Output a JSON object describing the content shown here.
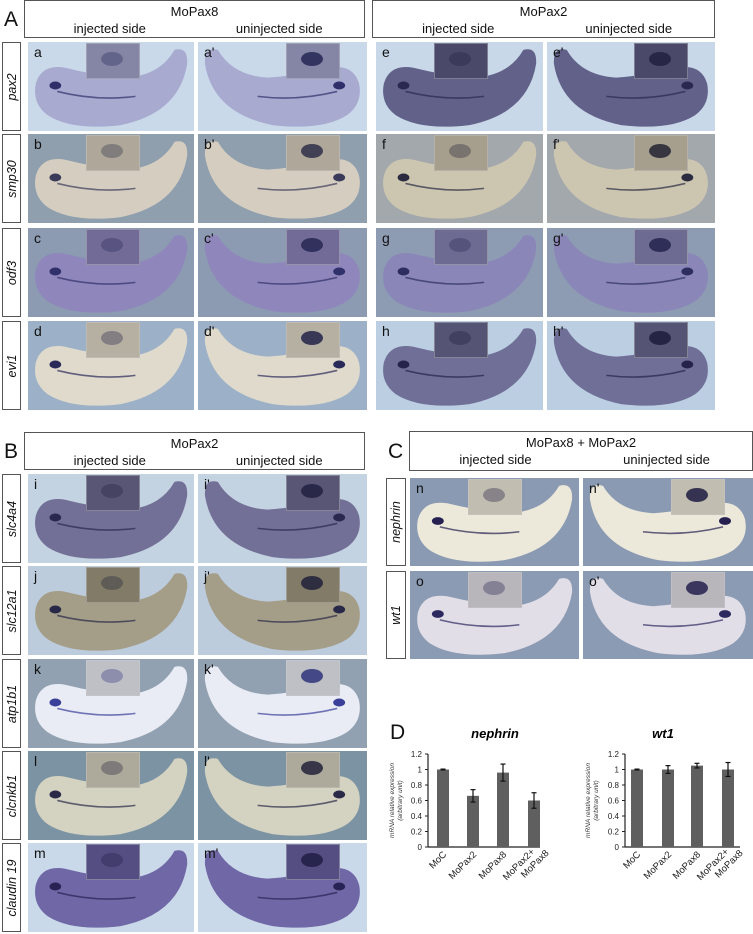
{
  "panels": [
    {
      "letter": "A",
      "row_labels": [
        "pax2",
        "smp30",
        "odf3",
        "evi1"
      ],
      "groups": [
        {
          "title": "MoPax8",
          "left_label": "injected side",
          "right_label": "uninjected side",
          "rows": [
            {
              "left_id": "a",
              "right_id": "a'"
            },
            {
              "left_id": "b",
              "right_id": "b'"
            },
            {
              "left_id": "c",
              "right_id": "c'"
            },
            {
              "left_id": "d",
              "right_id": "d'"
            }
          ]
        },
        {
          "title": "MoPax2",
          "left_label": "injected side",
          "right_label": "uninjected side",
          "rows": [
            {
              "left_id": "e",
              "right_id": "e'"
            },
            {
              "left_id": "f",
              "right_id": "f'"
            },
            {
              "left_id": "g",
              "right_id": "g'"
            },
            {
              "left_id": "h",
              "right_id": "h'"
            }
          ]
        }
      ]
    },
    {
      "letter": "B",
      "row_labels": [
        "slc4a4",
        "slc12a1",
        "atp1b1",
        "clcnkb1",
        "claudin 19"
      ],
      "groups": [
        {
          "title": "MoPax2",
          "left_label": "injected side",
          "right_label": "uninjected side",
          "rows": [
            {
              "left_id": "i",
              "right_id": "i'"
            },
            {
              "left_id": "j",
              "right_id": "j'"
            },
            {
              "left_id": "k",
              "right_id": "k'"
            },
            {
              "left_id": "l",
              "right_id": "l'"
            },
            {
              "left_id": "m",
              "right_id": "m'"
            }
          ]
        }
      ]
    },
    {
      "letter": "C",
      "row_labels": [
        "nephrin",
        "wt1"
      ],
      "groups": [
        {
          "title": "MoPax8 + MoPax2",
          "left_label": "injected side",
          "right_label": "uninjected side",
          "rows": [
            {
              "left_id": "n",
              "right_id": "n'"
            },
            {
              "left_id": "o",
              "right_id": "o'"
            }
          ]
        }
      ]
    }
  ],
  "panel_d_letter": "D",
  "chart_data": [
    {
      "type": "bar",
      "title": "nephrin",
      "ylabel": [
        "mRNA relative expression",
        "(arbitrary unit)"
      ],
      "categories": [
        "MoC",
        "MoPax2",
        "MoPax8",
        "MoPax2+ MoPax8"
      ],
      "values": [
        1.0,
        0.66,
        0.96,
        0.6
      ],
      "errors": [
        0.005,
        0.08,
        0.11,
        0.1
      ],
      "ylim": [
        0,
        1.2
      ],
      "yticks": [
        "0",
        "0.2",
        "0.4",
        "0.6",
        "0.8",
        "1",
        "1.2"
      ],
      "grid": false,
      "bar_color": "#5f5f5f"
    },
    {
      "type": "bar",
      "title": "wt1",
      "ylabel": [
        "mRNA relative expression",
        "(arbitrary unit)"
      ],
      "categories": [
        "MoC",
        "MoPax2",
        "MoPax8",
        "MoPax2+ MoPax8"
      ],
      "values": [
        1.0,
        1.0,
        1.05,
        1.0
      ],
      "errors": [
        0.005,
        0.05,
        0.03,
        0.09
      ],
      "ylim": [
        0,
        1.2
      ],
      "yticks": [
        "0",
        "0.2",
        "0.4",
        "0.6",
        "0.8",
        "1",
        "1.2"
      ],
      "grid": false,
      "bar_color": "#5f5f5f"
    }
  ],
  "photo_colors": {
    "a": [
      "#c9d9ea",
      "#a6a8cf",
      "#2f2f6a"
    ],
    "e": [
      "#c8d8e8",
      "#5d5b84",
      "#2a2850"
    ],
    "b": [
      "#8f9fae",
      "#d9d1c1",
      "#3a3a5a"
    ],
    "f": [
      "#a3a8ad",
      "#cfc7b1",
      "#2a2a40"
    ],
    "c": [
      "#8c9ab2",
      "#8f86bd",
      "#30306a"
    ],
    "g": [
      "#8d9bb3",
      "#8a86b8",
      "#2d2d60"
    ],
    "d": [
      "#9cb1c8",
      "#e3dccb",
      "#2a2a5a"
    ],
    "h": [
      "#bbcee2",
      "#6b6992",
      "#25234a"
    ],
    "i": [
      "#c4d3e2",
      "#6f6a92",
      "#2b2850"
    ],
    "j": [
      "#bcccdc",
      "#a29a82",
      "#282848"
    ],
    "k": [
      "#91a1b1",
      "#eef0f8",
      "#3a3f9a"
    ],
    "l": [
      "#7b93a3",
      "#d9d5c2",
      "#2a2a48"
    ],
    "m": [
      "#cad9ea",
      "#6a62a2",
      "#272455"
    ],
    "n": [
      "#8a9ab2",
      "#f1ecdc",
      "#252050"
    ],
    "o": [
      "#8b9bb3",
      "#e6e2ea",
      "#2c2860"
    ]
  }
}
